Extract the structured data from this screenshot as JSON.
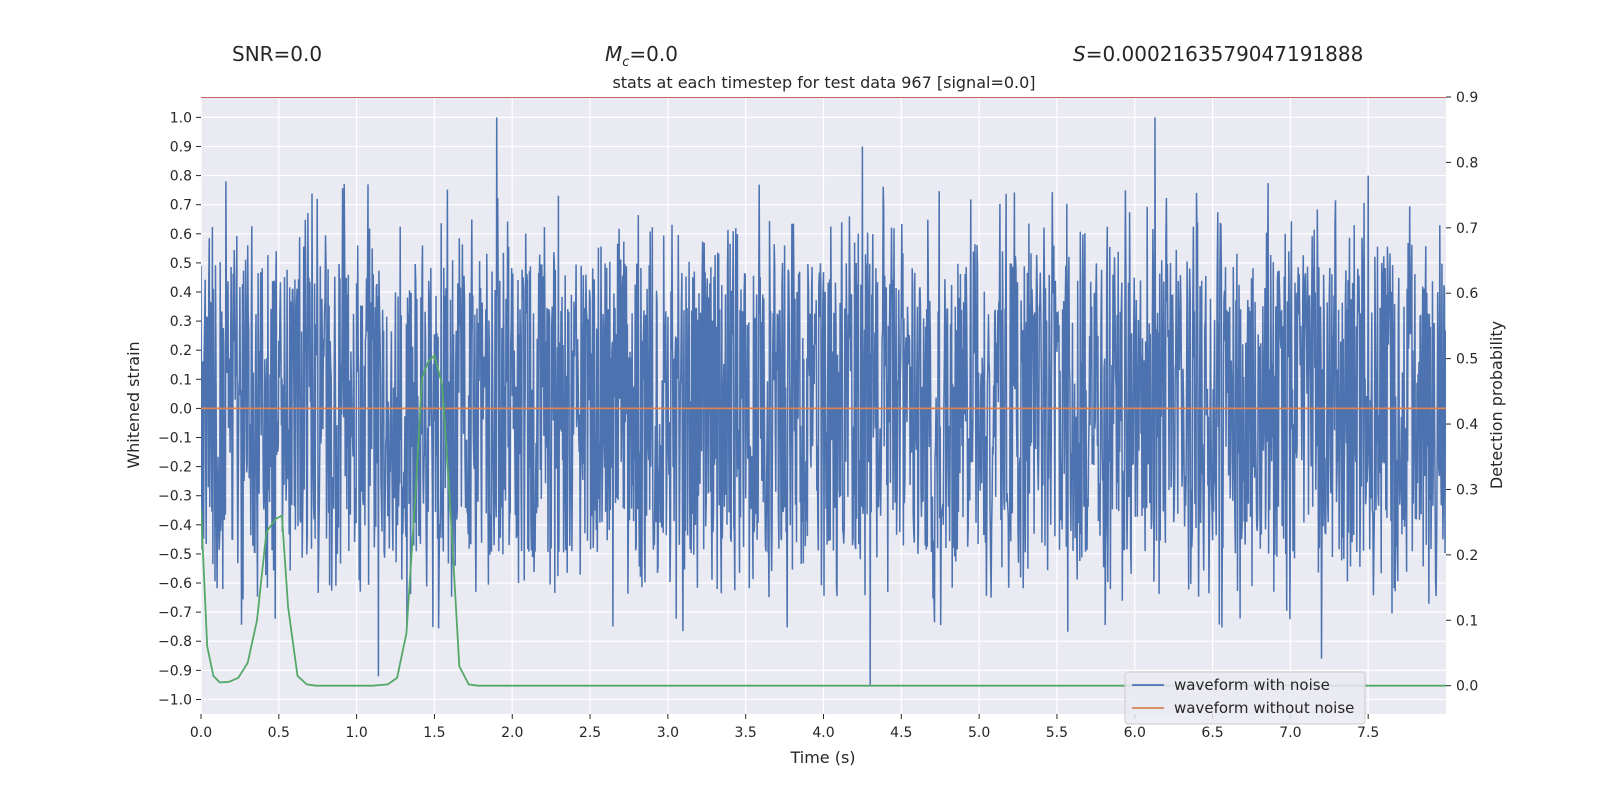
{
  "header": {
    "snr_label": "SNR=0.0",
    "mc_symbol": "M",
    "mc_sub": "c",
    "mc_value": "=0.0",
    "s_symbol": "S",
    "s_value": "=0.0002163579047191888"
  },
  "chart_data": {
    "type": "line",
    "title": "stats at each timestep for test data 967 [signal=0.0]",
    "xlabel": "Time (s)",
    "ylabel_left": "Whitened strain",
    "ylabel_right": "Detection probability",
    "xlim": [
      0.0,
      8.0
    ],
    "ylim_left": [
      -1.05,
      1.07
    ],
    "ylim_right": [
      -0.0433,
      0.9
    ],
    "x_ticks": [
      0.0,
      0.5,
      1.0,
      1.5,
      2.0,
      2.5,
      3.0,
      3.5,
      4.0,
      4.5,
      5.0,
      5.5,
      6.0,
      6.5,
      7.0,
      7.5
    ],
    "x_tick_labels": [
      "0.0",
      "0.5",
      "1.0",
      "1.5",
      "2.0",
      "2.5",
      "3.0",
      "3.5",
      "4.0",
      "4.5",
      "5.0",
      "5.5",
      "6.0",
      "6.5",
      "7.0",
      "7.5"
    ],
    "y_left_ticks": [
      1.0,
      0.9,
      0.8,
      0.7,
      0.6,
      0.5,
      0.4,
      0.3,
      0.2,
      0.1,
      0.0,
      -0.1,
      -0.2,
      -0.3,
      -0.4,
      -0.5,
      -0.6,
      -0.7,
      -0.8,
      -0.9,
      -1.0
    ],
    "y_left_tick_labels": [
      "1.0",
      "0.9",
      "0.8",
      "0.7",
      "0.6",
      "0.5",
      "0.4",
      "0.3",
      "0.2",
      "0.1",
      "0.0",
      "−0.1",
      "−0.2",
      "−0.3",
      "−0.4",
      "−0.5",
      "−0.6",
      "−0.7",
      "−0.8",
      "−0.9",
      "−1.0"
    ],
    "y_right_ticks": [
      0.9,
      0.8,
      0.7,
      0.6,
      0.5,
      0.4,
      0.3,
      0.2,
      0.1,
      0.0
    ],
    "y_right_tick_labels": [
      "0.9",
      "0.8",
      "0.7",
      "0.6",
      "0.5",
      "0.4",
      "0.3",
      "0.2",
      "0.1",
      "0.0"
    ],
    "threshold": {
      "value": 0.9,
      "axis": "right",
      "color": "#c44e52"
    },
    "series": [
      {
        "name": "waveform with noise",
        "axis": "left",
        "color": "#4c72b0",
        "style": "dense-noise",
        "sample_peaks": [
          [
            1.9,
            1.0
          ],
          [
            6.13,
            1.0
          ],
          [
            4.25,
            0.9
          ],
          [
            4.3,
            -0.95
          ],
          [
            1.14,
            -0.92
          ],
          [
            7.2,
            -0.86
          ],
          [
            7.5,
            0.8
          ],
          [
            0.16,
            0.78
          ]
        ]
      },
      {
        "name": "waveform without noise",
        "axis": "left",
        "color": "#dd8452",
        "x": [
          0.0,
          8.0
        ],
        "y": [
          0.0,
          0.0
        ]
      },
      {
        "name": "detection probability",
        "axis": "right",
        "color": "#55a868",
        "x": [
          0.0,
          0.04,
          0.08,
          0.12,
          0.18,
          0.24,
          0.3,
          0.36,
          0.42,
          0.48,
          0.52,
          0.56,
          0.62,
          0.68,
          0.74,
          0.8,
          0.9,
          1.0,
          1.1,
          1.2,
          1.26,
          1.32,
          1.38,
          1.42,
          1.46,
          1.5,
          1.55,
          1.6,
          1.66,
          1.72,
          1.78,
          1.85,
          2.0,
          8.0
        ],
        "y": [
          0.27,
          0.06,
          0.015,
          0.005,
          0.006,
          0.012,
          0.035,
          0.1,
          0.235,
          0.255,
          0.26,
          0.12,
          0.015,
          0.002,
          0.0,
          0.0,
          0.0,
          0.0,
          0.0,
          0.002,
          0.012,
          0.08,
          0.3,
          0.47,
          0.495,
          0.505,
          0.46,
          0.28,
          0.03,
          0.002,
          0.0,
          0.0,
          0.0,
          0.0
        ]
      }
    ],
    "legend": {
      "position": "bottom-right",
      "entries": [
        "waveform with noise",
        "waveform without noise"
      ]
    }
  }
}
